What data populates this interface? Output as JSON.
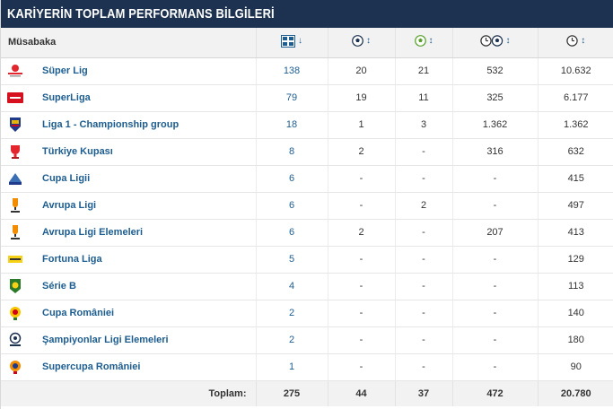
{
  "title": "KARİYERİN TOPLAM PERFORMANS BİLGİLERİ",
  "header": {
    "competition": "Müsabaka",
    "apps_icon": "appearances-shirt-icon",
    "goals_icon": "goal-ball-icon",
    "assists_icon": "assist-ball-icon",
    "minutes_per_goal_icon": "minutes-per-goal-icon",
    "minutes_icon": "minutes-clock-icon",
    "sort_down": "↓",
    "sort_both": "↕"
  },
  "rows": [
    {
      "name": "Süper Lig",
      "logo": "super-lig-logo",
      "apps": "138",
      "goals": "20",
      "assists": "21",
      "min_per_goal": "532",
      "minutes": "10.632"
    },
    {
      "name": "SuperLiga",
      "logo": "superliga-logo",
      "apps": "79",
      "goals": "19",
      "assists": "11",
      "min_per_goal": "325",
      "minutes": "6.177"
    },
    {
      "name": "Liga 1 - Championship group",
      "logo": "liga-1-logo",
      "apps": "18",
      "goals": "1",
      "assists": "3",
      "min_per_goal": "1.362",
      "minutes": "1.362"
    },
    {
      "name": "Türkiye Kupası",
      "logo": "turkiye-kupasi-logo",
      "apps": "8",
      "goals": "2",
      "assists": "-",
      "min_per_goal": "316",
      "minutes": "632"
    },
    {
      "name": "Cupa Ligii",
      "logo": "cupa-ligii-logo",
      "apps": "6",
      "goals": "-",
      "assists": "-",
      "min_per_goal": "-",
      "minutes": "415"
    },
    {
      "name": "Avrupa Ligi",
      "logo": "avrupa-ligi-logo",
      "apps": "6",
      "goals": "-",
      "assists": "2",
      "min_per_goal": "-",
      "minutes": "497"
    },
    {
      "name": "Avrupa Ligi Elemeleri",
      "logo": "avrupa-ligi-elemeleri-logo",
      "apps": "6",
      "goals": "2",
      "assists": "-",
      "min_per_goal": "207",
      "minutes": "413"
    },
    {
      "name": "Fortuna Liga",
      "logo": "fortuna-liga-logo",
      "apps": "5",
      "goals": "-",
      "assists": "-",
      "min_per_goal": "-",
      "minutes": "129"
    },
    {
      "name": "Série B",
      "logo": "serie-b-logo",
      "apps": "4",
      "goals": "-",
      "assists": "-",
      "min_per_goal": "-",
      "minutes": "113"
    },
    {
      "name": "Cupa României",
      "logo": "cupa-romaniei-logo",
      "apps": "2",
      "goals": "-",
      "assists": "-",
      "min_per_goal": "-",
      "minutes": "140"
    },
    {
      "name": "Şampiyonlar Ligi Elemeleri",
      "logo": "sampiyonlar-ligi-elemeleri-logo",
      "apps": "2",
      "goals": "-",
      "assists": "-",
      "min_per_goal": "-",
      "minutes": "180"
    },
    {
      "name": "Supercupa României",
      "logo": "supercupa-romaniei-logo",
      "apps": "1",
      "goals": "-",
      "assists": "-",
      "min_per_goal": "-",
      "minutes": "90"
    }
  ],
  "footer": {
    "label": "Toplam:",
    "apps": "275",
    "goals": "44",
    "assists": "37",
    "min_per_goal": "472",
    "minutes": "20.780"
  }
}
